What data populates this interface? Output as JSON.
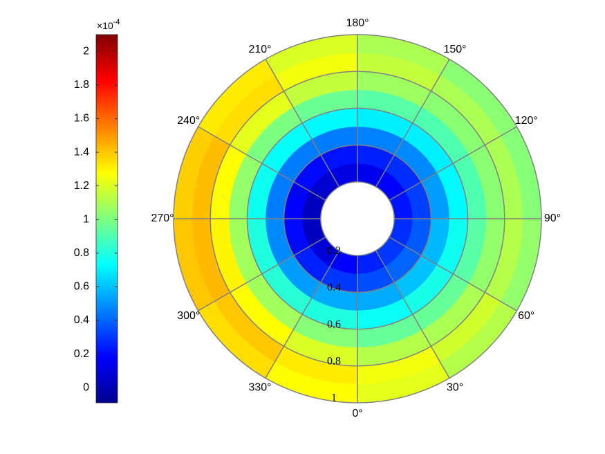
{
  "chart_data": {
    "type": "polar-heatmap",
    "r_edges": [
      0.2,
      0.3,
      0.4,
      0.5,
      0.6,
      0.7,
      0.8,
      0.9,
      1.0
    ],
    "theta_edges": [
      0,
      30,
      60,
      90,
      120,
      150,
      180,
      210,
      240,
      270,
      300,
      330,
      360
    ],
    "values": [
      [
        0.25,
        0.3,
        0.28,
        0.22,
        0.18,
        0.15,
        0.12,
        0.08,
        0.05,
        0.05,
        0.1,
        0.18
      ],
      [
        0.35,
        0.4,
        0.38,
        0.32,
        0.28,
        0.25,
        0.22,
        0.2,
        0.18,
        0.2,
        0.25,
        0.3
      ],
      [
        0.55,
        0.6,
        0.58,
        0.52,
        0.48,
        0.46,
        0.45,
        0.45,
        0.45,
        0.48,
        0.52,
        0.55
      ],
      [
        0.75,
        0.78,
        0.76,
        0.72,
        0.7,
        0.7,
        0.72,
        0.74,
        0.76,
        0.8,
        0.82,
        0.8
      ],
      [
        0.95,
        0.95,
        0.92,
        0.9,
        0.9,
        0.92,
        0.96,
        1.0,
        1.05,
        1.08,
        1.08,
        1.02
      ],
      [
        1.12,
        1.1,
        1.05,
        1.03,
        1.03,
        1.07,
        1.15,
        1.22,
        1.28,
        1.3,
        1.28,
        1.2
      ],
      [
        1.25,
        1.18,
        1.12,
        1.1,
        1.1,
        1.15,
        1.25,
        1.35,
        1.42,
        1.43,
        1.4,
        1.32
      ],
      [
        1.22,
        1.12,
        1.05,
        1.02,
        1.03,
        1.1,
        1.2,
        1.32,
        1.38,
        1.4,
        1.35,
        1.28
      ]
    ],
    "rlim": [
      0,
      1
    ],
    "rticks": [
      0.2,
      0.4,
      0.6,
      0.8,
      1
    ],
    "thetaticks": [
      {
        "value": 0,
        "label": "0°"
      },
      {
        "value": 30,
        "label": "30°"
      },
      {
        "value": 60,
        "label": "60°"
      },
      {
        "value": 90,
        "label": "90°"
      },
      {
        "value": 120,
        "label": "120°"
      },
      {
        "value": 150,
        "label": "150°"
      },
      {
        "value": 180,
        "label": "180°"
      },
      {
        "value": 210,
        "label": "210°"
      },
      {
        "value": 240,
        "label": "240°"
      },
      {
        "value": 270,
        "label": "270°"
      },
      {
        "value": 300,
        "label": "300°"
      },
      {
        "value": 330,
        "label": "330°"
      }
    ],
    "colormap": "jet",
    "clim": [
      -0.09,
      2.1
    ],
    "colorbar_ticks": [
      0,
      0.2,
      0.4,
      0.6,
      0.8,
      1,
      1.2,
      1.4,
      1.6,
      1.8,
      2
    ],
    "colorbar_multiplier": {
      "base": "×10",
      "exponent": "-4"
    },
    "grid": true
  }
}
